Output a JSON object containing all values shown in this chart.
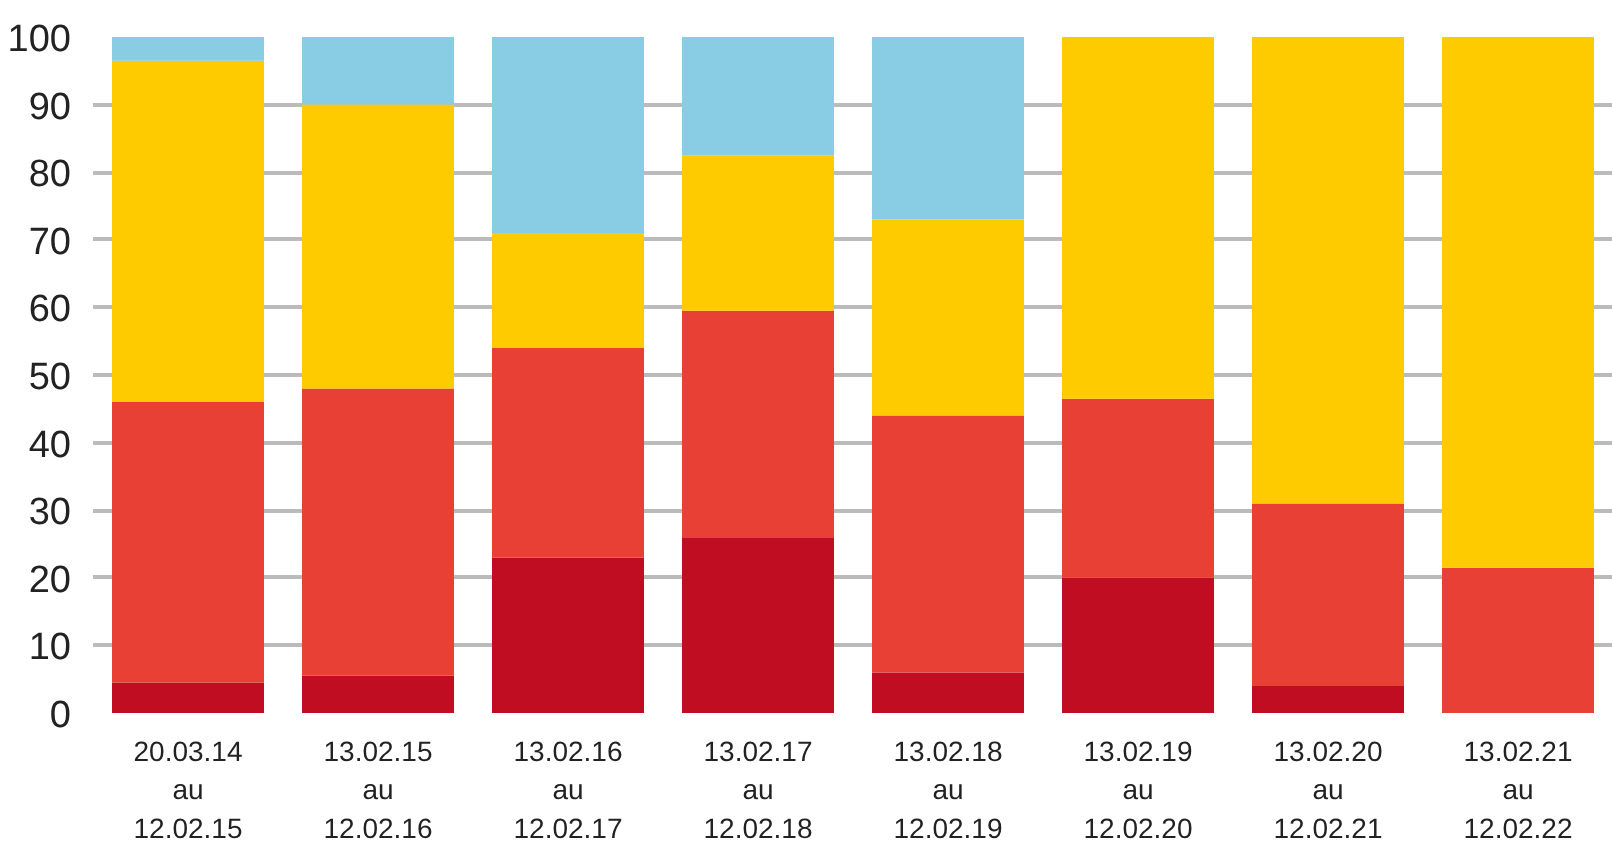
{
  "chart_data": {
    "type": "bar",
    "stacked": true,
    "categories": [
      "20.03.14\nau\n12.02.15",
      "13.02.15\nau\n12.02.16",
      "13.02.16\nau\n12.02.17",
      "13.02.17\nau\n12.02.18",
      "13.02.18\nau\n12.02.19",
      "13.02.19\nau\n12.02.20",
      "13.02.20\nau\n12.02.21",
      "13.02.21\nau\n12.02.22"
    ],
    "series": [
      {
        "color": "#c00d22",
        "values": [
          4.5,
          5.5,
          23,
          26,
          6,
          20,
          4,
          0
        ]
      },
      {
        "color": "#e94035",
        "values": [
          41.5,
          42.5,
          31,
          33.5,
          38,
          26.5,
          27,
          21.5
        ]
      },
      {
        "color": "#fdcb00",
        "values": [
          50.5,
          42,
          17,
          23,
          29,
          53.5,
          69,
          78.5
        ]
      },
      {
        "color": "#89cde4",
        "values": [
          3.5,
          10,
          29,
          17.5,
          27,
          0,
          0,
          0
        ]
      }
    ],
    "ylim": [
      0,
      100
    ],
    "yticks": [
      0,
      10,
      20,
      30,
      40,
      50,
      60,
      70,
      80,
      90,
      100
    ],
    "grid": "y"
  }
}
